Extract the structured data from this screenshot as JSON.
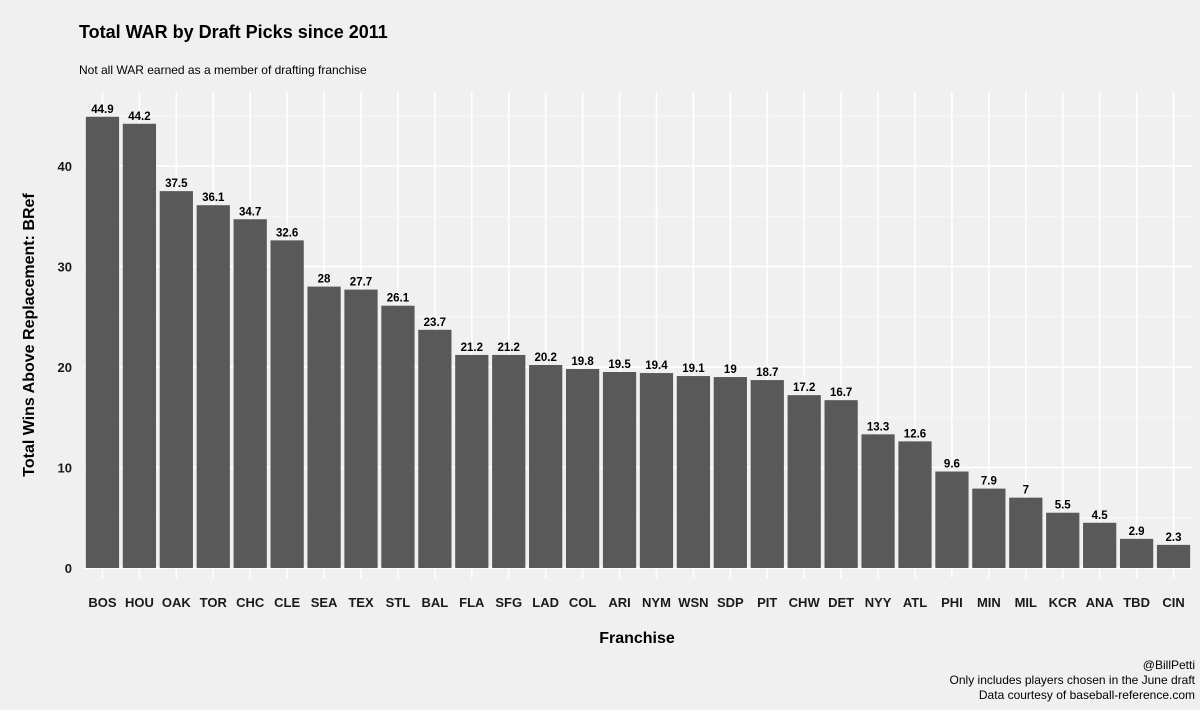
{
  "chart_data": {
    "type": "bar",
    "title": "Total WAR by Draft Picks since 2011",
    "subtitle": "Not all WAR earned as a member of drafting franchise",
    "xlabel": "Franchise",
    "ylabel": "Total Wins Above Replacement: BRef",
    "ylim": [
      0,
      47
    ],
    "yticks": [
      0,
      10,
      20,
      30,
      40
    ],
    "grid": true,
    "bar_color": "#595959",
    "categories": [
      "BOS",
      "HOU",
      "OAK",
      "TOR",
      "CHC",
      "CLE",
      "SEA",
      "TEX",
      "STL",
      "BAL",
      "FLA",
      "SFG",
      "LAD",
      "COL",
      "ARI",
      "NYM",
      "WSN",
      "SDP",
      "PIT",
      "CHW",
      "DET",
      "NYY",
      "ATL",
      "PHI",
      "MIN",
      "MIL",
      "KCR",
      "ANA",
      "TBD",
      "CIN"
    ],
    "values": [
      44.9,
      44.2,
      37.5,
      36.1,
      34.7,
      32.6,
      28,
      27.7,
      26.1,
      23.7,
      21.2,
      21.2,
      20.2,
      19.8,
      19.5,
      19.4,
      19.1,
      19,
      18.7,
      17.2,
      16.7,
      13.3,
      12.6,
      9.6,
      7.9,
      7,
      5.5,
      4.5,
      2.9,
      2.3
    ],
    "caption": [
      "@BillPetti",
      "Only includes players chosen in the June draft",
      "Data courtesy of baseball-reference.com"
    ]
  }
}
